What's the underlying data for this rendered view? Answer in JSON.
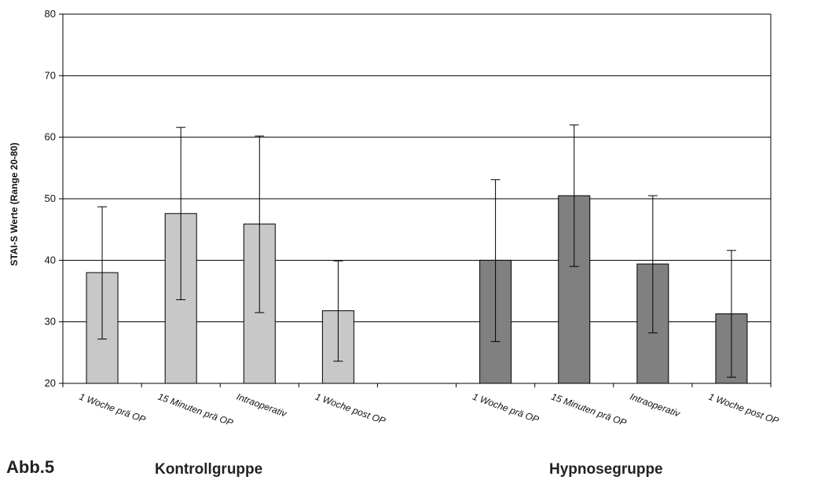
{
  "figure_label": "Abb.5",
  "chart_data": {
    "type": "bar",
    "ylabel": "STAI-S Werte    (Range 20-80)",
    "ylim": [
      20,
      80
    ],
    "yticks": [
      20,
      30,
      40,
      50,
      60,
      70,
      80
    ],
    "grid": true,
    "categories": [
      "1 Woche prä OP",
      "15 Minuten prä OP",
      "Intraoperativ",
      "1 Woche post OP",
      "",
      "1 Woche prä OP",
      "15 Minuten prä OP",
      "Intraoperativ",
      "1 Woche post OP"
    ],
    "groups": [
      {
        "name": "Kontrollgruppe",
        "color": "#c8c8c8",
        "points": [
          {
            "label": "1 Woche prä OP",
            "value": 38.0,
            "err_low": 27.2,
            "err_high": 48.7
          },
          {
            "label": "15 Minuten prä OP",
            "value": 47.6,
            "err_low": 33.6,
            "err_high": 61.6
          },
          {
            "label": "Intraoperativ",
            "value": 45.9,
            "err_low": 31.5,
            "err_high": 60.2
          },
          {
            "label": "1 Woche post OP",
            "value": 31.8,
            "err_low": 23.6,
            "err_high": 39.9
          }
        ]
      },
      {
        "name": "Hypnosegruppe",
        "color": "#808080",
        "points": [
          {
            "label": "1 Woche prä OP",
            "value": 40.0,
            "err_low": 26.8,
            "err_high": 53.1
          },
          {
            "label": "15 Minuten prä OP",
            "value": 50.5,
            "err_low": 39.0,
            "err_high": 62.0
          },
          {
            "label": "Intraoperativ",
            "value": 39.4,
            "err_low": 28.2,
            "err_high": 50.5
          },
          {
            "label": "1 Woche post OP",
            "value": 31.3,
            "err_low": 21.0,
            "err_high": 41.6
          }
        ]
      }
    ]
  }
}
